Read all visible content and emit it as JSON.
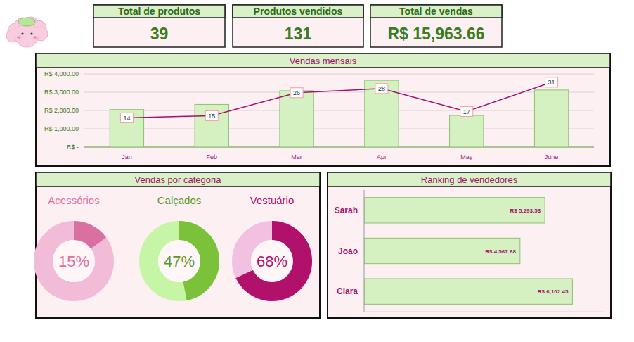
{
  "kpis": [
    {
      "title": "Total de produtos",
      "value": 39
    },
    {
      "title": "Produtos vendidos",
      "value": 131
    },
    {
      "title": "Total de vendas",
      "value": 15963.66,
      "label": "R$ 15,963.66"
    }
  ],
  "chart_data": [
    {
      "type": "bar",
      "title": "Vendas mensais",
      "categories": [
        "Jan",
        "Feb",
        "Mar",
        "Apr",
        "May",
        "June"
      ],
      "ylim": [
        0,
        4000
      ],
      "yticks": [
        {
          "value": 0,
          "label": "R$ -"
        },
        {
          "value": 1000,
          "label": "R$ 1,000.00"
        },
        {
          "value": 2000,
          "label": "R$ 2,000.00"
        },
        {
          "value": 3000,
          "label": "R$ 3,000.00"
        },
        {
          "value": 4000,
          "label": "R$ 4,000.00"
        }
      ],
      "y2lim": [
        0,
        35
      ],
      "grid": true,
      "series": [
        {
          "type": "bar",
          "color": "#d5f0c1",
          "values": [
            2050,
            2330,
            3080,
            3650,
            1730,
            3120
          ]
        },
        {
          "type": "line",
          "color": "#a3126e",
          "axis": "y2",
          "data_labels": true,
          "values": [
            14,
            15,
            26,
            28,
            17,
            31
          ]
        }
      ]
    },
    {
      "type": "donut",
      "title": "Vendas por categoria",
      "categories": [
        "Acessórios",
        "Calçados",
        "Vestuário"
      ],
      "values": [
        15,
        47,
        68
      ],
      "value_labels": [
        "15%",
        "47%",
        "68%"
      ],
      "colors": [
        "#d9709f",
        "#7cc13a",
        "#b1106b"
      ],
      "ylim": [
        0,
        100
      ],
      "data_labels": true
    },
    {
      "type": "bar",
      "orientation": "horizontal",
      "title": "Ranking de vendedores",
      "categories": [
        "Sarah",
        "João",
        "Clara"
      ],
      "values": [
        5293.53,
        4567.68,
        6102.45
      ],
      "value_labels": [
        "R$ 5,293.53",
        "R$ 4,567.68",
        "R$ 6,102.45"
      ],
      "color": "#d5f0c1",
      "xlim": [
        0,
        7000
      ],
      "data_labels": true,
      "tick_labels": "y"
    }
  ]
}
